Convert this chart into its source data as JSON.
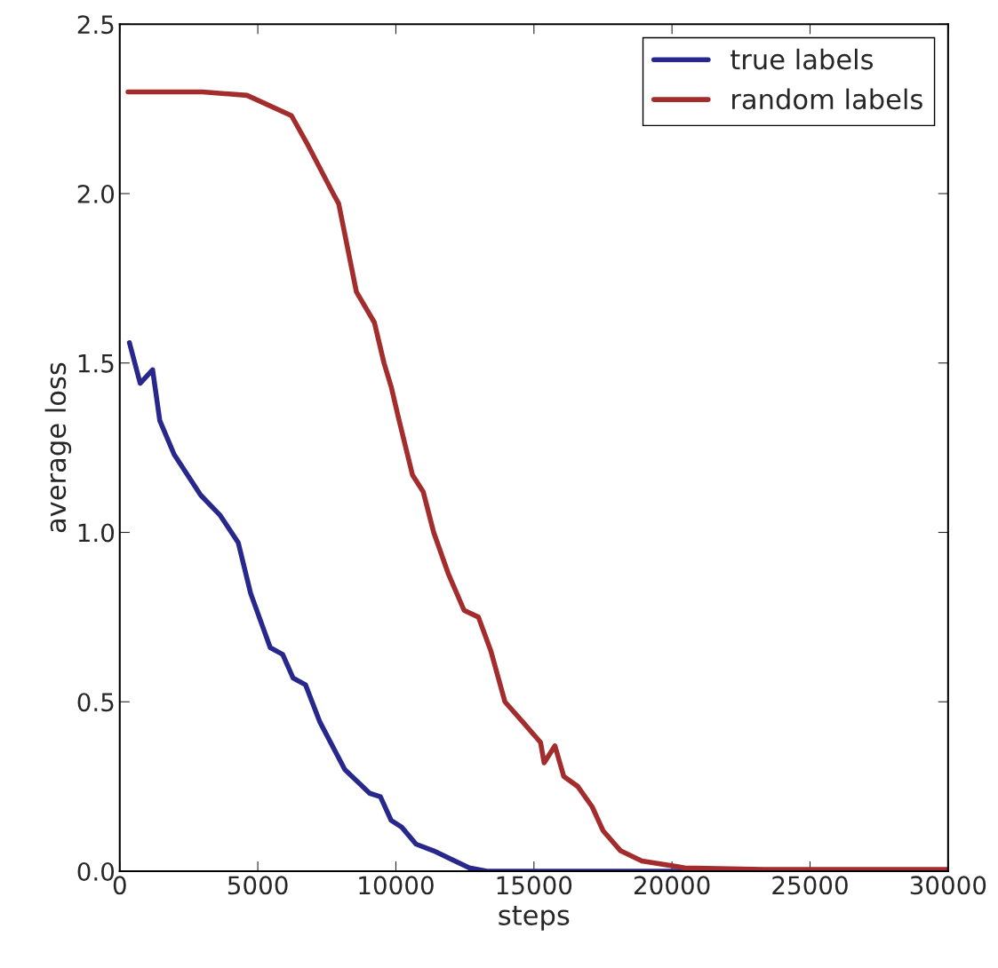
{
  "chart_data": {
    "type": "line",
    "xlabel": "steps",
    "ylabel": "average loss",
    "xlim": [
      0,
      30000
    ],
    "xticks": [
      0,
      5000,
      10000,
      15000,
      20000,
      25000,
      30000
    ],
    "ylim": [
      0,
      2.5
    ],
    "yticks": [
      {
        "value": 0,
        "label": "0.0"
      },
      {
        "value": 0.5,
        "label": "0.5"
      },
      {
        "value": 1,
        "label": "1.0"
      },
      {
        "value": 1.5,
        "label": "1.5"
      },
      {
        "value": 2,
        "label": "2.0"
      },
      {
        "value": 2.5,
        "label": "2.5"
      }
    ],
    "grid": false,
    "legend": "top right",
    "marker": "none",
    "line_style": "solid",
    "series": [
      {
        "name": "true labels",
        "color": "#28288c",
        "x": [
          350,
          740,
          1190,
          1450,
          1970,
          2930,
          3640,
          4290,
          4740,
          5450,
          5900,
          6280,
          6730,
          7250,
          8150,
          9050,
          9440,
          9830,
          10210,
          10730,
          11370,
          12660,
          13300,
          15000,
          20000,
          25000,
          30000
        ],
        "values": [
          1.56,
          1.44,
          1.48,
          1.33,
          1.23,
          1.11,
          1.05,
          0.97,
          0.82,
          0.66,
          0.64,
          0.57,
          0.55,
          0.44,
          0.3,
          0.23,
          0.22,
          0.15,
          0.13,
          0.08,
          0.06,
          0.01,
          0.0,
          0.0,
          0.0,
          0.0,
          0.0
        ]
      },
      {
        "name": "random labels",
        "color": "#a32c2c",
        "x": [
          300,
          3000,
          4610,
          6220,
          6770,
          7730,
          7930,
          8570,
          9220,
          9570,
          9830,
          10090,
          10600,
          10990,
          11370,
          11890,
          12470,
          12990,
          13440,
          13950,
          14600,
          15240,
          15370,
          15760,
          16080,
          16590,
          17110,
          17500,
          18140,
          18910,
          20460,
          23300,
          30000
        ],
        "values": [
          2.3,
          2.3,
          2.29,
          2.23,
          2.15,
          2.0,
          1.97,
          1.71,
          1.62,
          1.5,
          1.43,
          1.34,
          1.17,
          1.12,
          1.0,
          0.88,
          0.77,
          0.75,
          0.65,
          0.5,
          0.44,
          0.38,
          0.32,
          0.37,
          0.28,
          0.25,
          0.19,
          0.12,
          0.06,
          0.03,
          0.01,
          0.005,
          0.005
        ]
      }
    ]
  }
}
